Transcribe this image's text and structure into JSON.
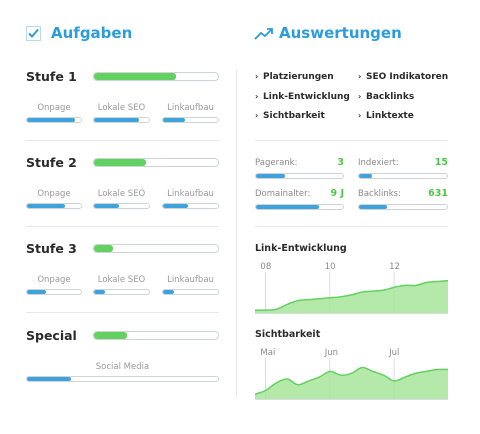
{
  "tasks": {
    "title": "Aufgaben",
    "stages": [
      {
        "label": "Stufe 1",
        "progress": 0.66,
        "subs": [
          {
            "label": "Onpage",
            "progress": 0.88
          },
          {
            "label": "Lokale SEO",
            "progress": 0.82
          },
          {
            "label": "Linkaufbau",
            "progress": 0.4
          }
        ]
      },
      {
        "label": "Stufe 2",
        "progress": 0.42,
        "subs": [
          {
            "label": "Onpage",
            "progress": 0.7
          },
          {
            "label": "Lokale SEO",
            "progress": 0.45
          },
          {
            "label": "Linkaufbau",
            "progress": 0.45
          }
        ]
      },
      {
        "label": "Stufe 3",
        "progress": 0.15,
        "subs": [
          {
            "label": "Onpage",
            "progress": 0.35
          },
          {
            "label": "Lokale SEO",
            "progress": 0.2
          },
          {
            "label": "Linkaufbau",
            "progress": 0.2
          }
        ]
      }
    ],
    "special": {
      "label": "Special",
      "progress": 0.27,
      "sub_label": "Social Media",
      "sub_progress": 0.23
    }
  },
  "analytics": {
    "title": "Auswertungen",
    "links": [
      "Platzierungen",
      "SEO Indikatoren",
      "Link-Entwicklung",
      "Backlinks",
      "Sichtbarkeit",
      "Linktexte"
    ],
    "metrics": [
      {
        "label": "Pagerank:",
        "value": "3",
        "progress": 0.33
      },
      {
        "label": "Indexiert:",
        "value": "15",
        "progress": 0.15
      },
      {
        "label": "Domainalter:",
        "value": "9 J",
        "progress": 0.72
      },
      {
        "label": "Backlinks:",
        "value": "631",
        "progress": 0.32
      }
    ],
    "colors": {
      "accent": "#2d9cdb",
      "green": "#62d160",
      "blue": "#3ea3dd"
    }
  },
  "chart_data": [
    {
      "type": "area",
      "title": "Link-Entwicklung",
      "x_ticks": [
        "08",
        "10",
        "12"
      ],
      "x": [
        0,
        1,
        2,
        3,
        4,
        5,
        6,
        7,
        8,
        9,
        10,
        11,
        12,
        13,
        14,
        15,
        16,
        17,
        18
      ],
      "values": [
        2,
        2,
        2.5,
        5,
        7,
        7.5,
        8,
        8.5,
        9,
        10,
        11.5,
        12,
        12.5,
        14,
        15,
        15,
        16.5,
        17,
        17.5
      ],
      "ylim": [
        0,
        22
      ],
      "grid": true
    },
    {
      "type": "area",
      "title": "Sichtbarkeit",
      "x_ticks": [
        "Mai",
        "Jun",
        "Jul"
      ],
      "x": [
        0,
        1,
        2,
        3,
        4,
        5,
        6,
        7,
        8,
        9,
        10,
        11,
        12,
        13,
        14,
        15,
        16,
        17,
        18
      ],
      "values": [
        3,
        5,
        9,
        11,
        8,
        10,
        12,
        15,
        13,
        14,
        17,
        15,
        13,
        10,
        12,
        14,
        15,
        16,
        16
      ],
      "ylim": [
        0,
        22
      ],
      "grid": true
    }
  ]
}
